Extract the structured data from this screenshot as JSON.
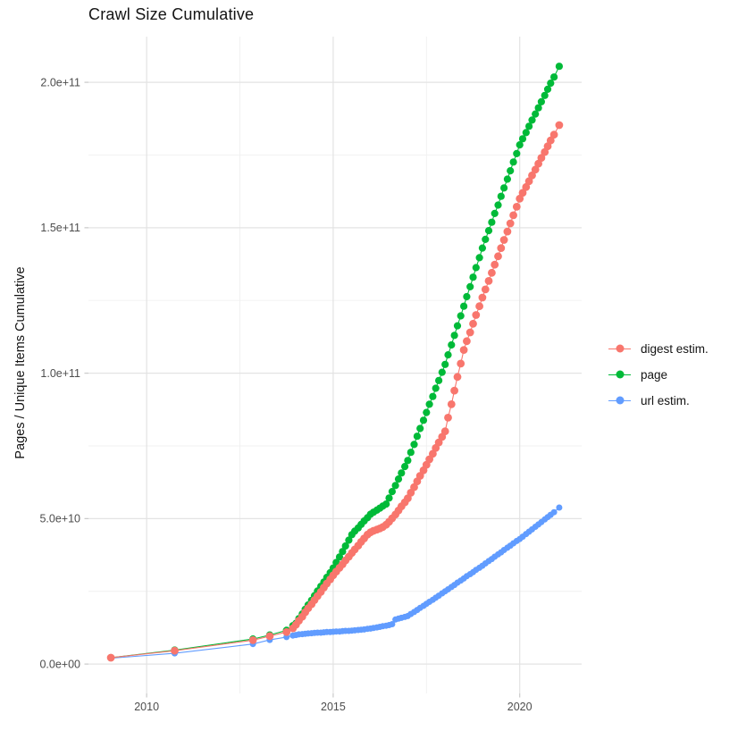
{
  "title": "Crawl Size Cumulative",
  "y_axis_title": "Pages / Unique Items Cumulative",
  "colors": {
    "digest": "#F8766D",
    "page": "#00BA38",
    "url": "#619CFF",
    "grid_major": "#e3e3e3",
    "grid_minor": "#f0f0f0",
    "tick_mark": "#c9c9c9",
    "axis_text": "#4d4d4d",
    "title_text": "#141414"
  },
  "legend": {
    "items": [
      {
        "key": "digest",
        "label": "digest estim."
      },
      {
        "key": "page",
        "label": "page"
      },
      {
        "key": "url",
        "label": "url estim."
      }
    ]
  },
  "chart_data": {
    "type": "line",
    "title": "Crawl Size Cumulative",
    "xlabel": "",
    "ylabel": "Pages / Unique Items Cumulative",
    "unit": "value_e9 = items in billions (1e9); point format [year, value_e9]",
    "xlim": [
      2008.44,
      2021.66
    ],
    "ylim_e9": [
      -10.1,
      215.7
    ],
    "grid": true,
    "legend_position": "right",
    "x_ticks": {
      "labels": [
        "2010",
        "2015",
        "2020"
      ],
      "years": [
        2010,
        2015,
        2020
      ]
    },
    "x_minor_years": [
      2012.5,
      2017.5
    ],
    "y_ticks": {
      "labels": [
        "0.0e+00",
        "5.0e+10",
        "1.0e+11",
        "1.5e+11",
        "2.0e+11"
      ],
      "values_e9": [
        0,
        50,
        100,
        150,
        200
      ]
    },
    "y_minor_values_e9": [
      25,
      75,
      125,
      175
    ],
    "series": [
      {
        "name": "url estim.",
        "color_key": "url",
        "point_radius": 3.5,
        "points": [
          [
            2009.04,
            2.0
          ],
          [
            2010.75,
            3.7
          ],
          [
            2012.85,
            6.9
          ],
          [
            2013.3,
            8.3
          ],
          [
            2013.75,
            9.3
          ],
          [
            2013.92,
            9.8
          ],
          [
            2014.0,
            10.0
          ],
          [
            2014.08,
            10.2
          ],
          [
            2014.17,
            10.3
          ],
          [
            2014.25,
            10.4
          ],
          [
            2014.33,
            10.5
          ],
          [
            2014.42,
            10.6
          ],
          [
            2014.5,
            10.7
          ],
          [
            2014.58,
            10.8
          ],
          [
            2014.67,
            10.8
          ],
          [
            2014.75,
            10.9
          ],
          [
            2014.83,
            11.0
          ],
          [
            2014.92,
            11.0
          ],
          [
            2015.0,
            11.1
          ],
          [
            2015.08,
            11.2
          ],
          [
            2015.17,
            11.2
          ],
          [
            2015.25,
            11.3
          ],
          [
            2015.33,
            11.4
          ],
          [
            2015.42,
            11.4
          ],
          [
            2015.5,
            11.5
          ],
          [
            2015.58,
            11.6
          ],
          [
            2015.67,
            11.7
          ],
          [
            2015.75,
            11.8
          ],
          [
            2015.83,
            11.9
          ],
          [
            2015.92,
            12.1
          ],
          [
            2016.0,
            12.2
          ],
          [
            2016.08,
            12.4
          ],
          [
            2016.17,
            12.6
          ],
          [
            2016.25,
            12.8
          ],
          [
            2016.33,
            13.0
          ],
          [
            2016.42,
            13.2
          ],
          [
            2016.5,
            13.4
          ],
          [
            2016.58,
            13.7
          ],
          [
            2016.67,
            15.3
          ],
          [
            2016.75,
            15.6
          ],
          [
            2016.83,
            15.9
          ],
          [
            2016.92,
            16.2
          ],
          [
            2017.0,
            16.5
          ],
          [
            2017.08,
            17.2
          ],
          [
            2017.17,
            17.9
          ],
          [
            2017.25,
            18.6
          ],
          [
            2017.33,
            19.3
          ],
          [
            2017.42,
            20.0
          ],
          [
            2017.5,
            20.7
          ],
          [
            2017.58,
            21.4
          ],
          [
            2017.67,
            22.1
          ],
          [
            2017.75,
            22.8
          ],
          [
            2017.83,
            23.5
          ],
          [
            2017.92,
            24.3
          ],
          [
            2018.0,
            25.0
          ],
          [
            2018.08,
            25.7
          ],
          [
            2018.17,
            26.5
          ],
          [
            2018.25,
            27.2
          ],
          [
            2018.33,
            28.0
          ],
          [
            2018.42,
            28.7
          ],
          [
            2018.5,
            29.4
          ],
          [
            2018.58,
            30.2
          ],
          [
            2018.67,
            30.9
          ],
          [
            2018.75,
            31.6
          ],
          [
            2018.83,
            32.4
          ],
          [
            2018.92,
            33.1
          ],
          [
            2019.0,
            33.8
          ],
          [
            2019.08,
            34.6
          ],
          [
            2019.17,
            35.4
          ],
          [
            2019.25,
            36.1
          ],
          [
            2019.33,
            36.9
          ],
          [
            2019.42,
            37.7
          ],
          [
            2019.5,
            38.4
          ],
          [
            2019.58,
            39.2
          ],
          [
            2019.67,
            40.0
          ],
          [
            2019.75,
            40.7
          ],
          [
            2019.83,
            41.5
          ],
          [
            2019.92,
            42.3
          ],
          [
            2020.0,
            43.0
          ],
          [
            2020.08,
            43.8
          ],
          [
            2020.17,
            44.7
          ],
          [
            2020.25,
            45.5
          ],
          [
            2020.33,
            46.3
          ],
          [
            2020.42,
            47.2
          ],
          [
            2020.5,
            48.0
          ],
          [
            2020.58,
            48.8
          ],
          [
            2020.67,
            49.7
          ],
          [
            2020.75,
            50.5
          ],
          [
            2020.83,
            51.3
          ],
          [
            2020.92,
            52.2
          ],
          [
            2021.06,
            53.8
          ]
        ]
      },
      {
        "name": "page",
        "color_key": "page",
        "point_radius": 4.1,
        "points": [
          [
            2009.04,
            2.2
          ],
          [
            2010.75,
            4.8
          ],
          [
            2012.85,
            8.6
          ],
          [
            2013.3,
            10.0
          ],
          [
            2013.75,
            11.6
          ],
          [
            2013.92,
            13.2
          ],
          [
            2014.0,
            14.0
          ],
          [
            2014.08,
            15.6
          ],
          [
            2014.17,
            17.2
          ],
          [
            2014.25,
            18.8
          ],
          [
            2014.33,
            20.3
          ],
          [
            2014.42,
            21.9
          ],
          [
            2014.5,
            23.5
          ],
          [
            2014.58,
            25.1
          ],
          [
            2014.67,
            26.7
          ],
          [
            2014.75,
            28.2
          ],
          [
            2014.83,
            29.8
          ],
          [
            2014.92,
            31.4
          ],
          [
            2015.0,
            33.0
          ],
          [
            2015.08,
            34.9
          ],
          [
            2015.17,
            36.8
          ],
          [
            2015.25,
            38.7
          ],
          [
            2015.33,
            40.6
          ],
          [
            2015.42,
            42.6
          ],
          [
            2015.5,
            44.5
          ],
          [
            2015.58,
            45.7
          ],
          [
            2015.67,
            46.8
          ],
          [
            2015.75,
            48.0
          ],
          [
            2015.83,
            49.2
          ],
          [
            2015.92,
            50.3
          ],
          [
            2016.0,
            51.5
          ],
          [
            2016.08,
            52.2
          ],
          [
            2016.17,
            52.9
          ],
          [
            2016.25,
            53.6
          ],
          [
            2016.33,
            54.3
          ],
          [
            2016.42,
            55.0
          ],
          [
            2016.5,
            57.1
          ],
          [
            2016.58,
            59.3
          ],
          [
            2016.67,
            61.4
          ],
          [
            2016.75,
            63.6
          ],
          [
            2016.83,
            65.7
          ],
          [
            2016.92,
            67.9
          ],
          [
            2017.0,
            70.0
          ],
          [
            2017.08,
            72.8
          ],
          [
            2017.17,
            75.5
          ],
          [
            2017.25,
            78.3
          ],
          [
            2017.33,
            81.0
          ],
          [
            2017.42,
            83.8
          ],
          [
            2017.5,
            86.5
          ],
          [
            2017.58,
            89.3
          ],
          [
            2017.67,
            92.0
          ],
          [
            2017.75,
            94.8
          ],
          [
            2017.83,
            97.5
          ],
          [
            2017.92,
            100.3
          ],
          [
            2018.0,
            103.0
          ],
          [
            2018.08,
            106.3
          ],
          [
            2018.17,
            109.7
          ],
          [
            2018.25,
            113.0
          ],
          [
            2018.33,
            116.3
          ],
          [
            2018.42,
            119.7
          ],
          [
            2018.5,
            123.0
          ],
          [
            2018.58,
            126.3
          ],
          [
            2018.67,
            129.7
          ],
          [
            2018.75,
            133.0
          ],
          [
            2018.83,
            136.3
          ],
          [
            2018.92,
            139.7
          ],
          [
            2019.0,
            143.0
          ],
          [
            2019.08,
            146.0
          ],
          [
            2019.17,
            149.0
          ],
          [
            2019.25,
            151.9
          ],
          [
            2019.33,
            154.9
          ],
          [
            2019.42,
            157.8
          ],
          [
            2019.5,
            160.8
          ],
          [
            2019.58,
            163.7
          ],
          [
            2019.67,
            166.7
          ],
          [
            2019.75,
            169.6
          ],
          [
            2019.83,
            172.6
          ],
          [
            2019.92,
            175.5
          ],
          [
            2020.0,
            178.5
          ],
          [
            2020.08,
            180.6
          ],
          [
            2020.17,
            182.7
          ],
          [
            2020.25,
            184.9
          ],
          [
            2020.33,
            187.0
          ],
          [
            2020.42,
            189.1
          ],
          [
            2020.5,
            191.2
          ],
          [
            2020.58,
            193.3
          ],
          [
            2020.67,
            195.5
          ],
          [
            2020.75,
            197.6
          ],
          [
            2020.83,
            199.7
          ],
          [
            2020.92,
            201.8
          ],
          [
            2021.06,
            205.5
          ]
        ]
      },
      {
        "name": "digest estim.",
        "color_key": "digest",
        "point_radius": 4.4,
        "points": [
          [
            2009.04,
            2.2
          ],
          [
            2010.75,
            4.6
          ],
          [
            2012.85,
            8.2
          ],
          [
            2013.3,
            9.6
          ],
          [
            2013.75,
            11.0
          ],
          [
            2013.92,
            12.3
          ],
          [
            2014.0,
            13.5
          ],
          [
            2014.08,
            14.9
          ],
          [
            2014.17,
            16.3
          ],
          [
            2014.25,
            17.8
          ],
          [
            2014.33,
            19.2
          ],
          [
            2014.42,
            20.6
          ],
          [
            2014.5,
            22.0
          ],
          [
            2014.58,
            23.4
          ],
          [
            2014.67,
            24.8
          ],
          [
            2014.75,
            26.3
          ],
          [
            2014.83,
            27.7
          ],
          [
            2014.92,
            29.1
          ],
          [
            2015.0,
            30.5
          ],
          [
            2015.08,
            31.8
          ],
          [
            2015.17,
            33.1
          ],
          [
            2015.25,
            34.3
          ],
          [
            2015.33,
            35.6
          ],
          [
            2015.42,
            36.9
          ],
          [
            2015.5,
            38.2
          ],
          [
            2015.58,
            39.4
          ],
          [
            2015.67,
            40.7
          ],
          [
            2015.75,
            42.0
          ],
          [
            2015.83,
            43.2
          ],
          [
            2015.92,
            44.5
          ],
          [
            2016.0,
            45.3
          ],
          [
            2016.08,
            45.8
          ],
          [
            2016.17,
            46.2
          ],
          [
            2016.25,
            46.6
          ],
          [
            2016.33,
            47.1
          ],
          [
            2016.42,
            47.9
          ],
          [
            2016.5,
            48.9
          ],
          [
            2016.58,
            50.1
          ],
          [
            2016.67,
            51.4
          ],
          [
            2016.75,
            52.8
          ],
          [
            2016.83,
            54.2
          ],
          [
            2016.92,
            55.6
          ],
          [
            2017.0,
            57.0
          ],
          [
            2017.08,
            58.9
          ],
          [
            2017.17,
            60.8
          ],
          [
            2017.25,
            62.8
          ],
          [
            2017.33,
            64.7
          ],
          [
            2017.42,
            66.6
          ],
          [
            2017.5,
            68.5
          ],
          [
            2017.58,
            70.4
          ],
          [
            2017.67,
            72.3
          ],
          [
            2017.75,
            74.3
          ],
          [
            2017.83,
            76.2
          ],
          [
            2017.92,
            78.1
          ],
          [
            2018.0,
            80.0
          ],
          [
            2018.08,
            84.7
          ],
          [
            2018.17,
            89.3
          ],
          [
            2018.25,
            94.0
          ],
          [
            2018.33,
            98.7
          ],
          [
            2018.42,
            103.3
          ],
          [
            2018.5,
            108.0
          ],
          [
            2018.58,
            111.0
          ],
          [
            2018.67,
            114.0
          ],
          [
            2018.75,
            117.0
          ],
          [
            2018.83,
            120.0
          ],
          [
            2018.92,
            123.0
          ],
          [
            2019.0,
            126.0
          ],
          [
            2019.08,
            128.8
          ],
          [
            2019.17,
            131.7
          ],
          [
            2019.25,
            134.5
          ],
          [
            2019.33,
            137.3
          ],
          [
            2019.42,
            140.2
          ],
          [
            2019.5,
            143.0
          ],
          [
            2019.58,
            145.8
          ],
          [
            2019.67,
            148.7
          ],
          [
            2019.75,
            151.5
          ],
          [
            2019.83,
            154.3
          ],
          [
            2019.92,
            157.2
          ],
          [
            2020.0,
            160.0
          ],
          [
            2020.08,
            162.0
          ],
          [
            2020.17,
            164.0
          ],
          [
            2020.25,
            166.0
          ],
          [
            2020.33,
            168.0
          ],
          [
            2020.42,
            170.0
          ],
          [
            2020.5,
            172.0
          ],
          [
            2020.58,
            174.0
          ],
          [
            2020.67,
            176.0
          ],
          [
            2020.75,
            178.0
          ],
          [
            2020.83,
            180.0
          ],
          [
            2020.92,
            182.0
          ],
          [
            2021.06,
            185.3
          ]
        ]
      }
    ]
  }
}
